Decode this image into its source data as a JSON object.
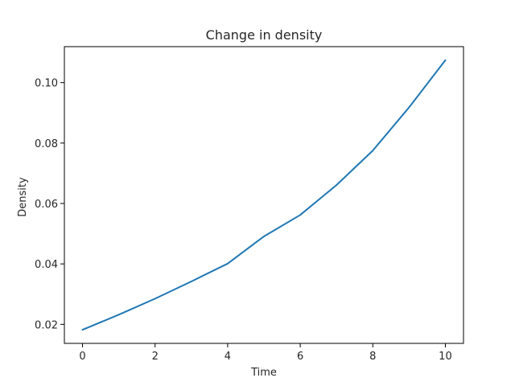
{
  "chart_data": {
    "type": "line",
    "title": "Change in density",
    "xlabel": "Time",
    "ylabel": "Density",
    "x": [
      0,
      1,
      2,
      3,
      4,
      5,
      6,
      7,
      8,
      9,
      10
    ],
    "series": [
      {
        "values": [
          0.0182,
          0.0232,
          0.0285,
          0.0342,
          0.0401,
          0.0491,
          0.0562,
          0.0661,
          0.0775,
          0.0918,
          0.1074
        ],
        "color": "#1f77b4"
      }
    ],
    "xlim": [
      -0.5,
      10.5
    ],
    "ylim": [
      0.0137,
      0.1119
    ],
    "xticks": [
      0,
      2,
      4,
      6,
      8,
      10
    ],
    "yticks": [
      0.02,
      0.04,
      0.06,
      0.08,
      0.1
    ],
    "xtick_labels": [
      "0",
      "2",
      "4",
      "6",
      "8",
      "10"
    ],
    "ytick_labels": [
      "0.02",
      "0.04",
      "0.06",
      "0.08",
      "0.10"
    ],
    "grid": false,
    "legend": "none"
  }
}
